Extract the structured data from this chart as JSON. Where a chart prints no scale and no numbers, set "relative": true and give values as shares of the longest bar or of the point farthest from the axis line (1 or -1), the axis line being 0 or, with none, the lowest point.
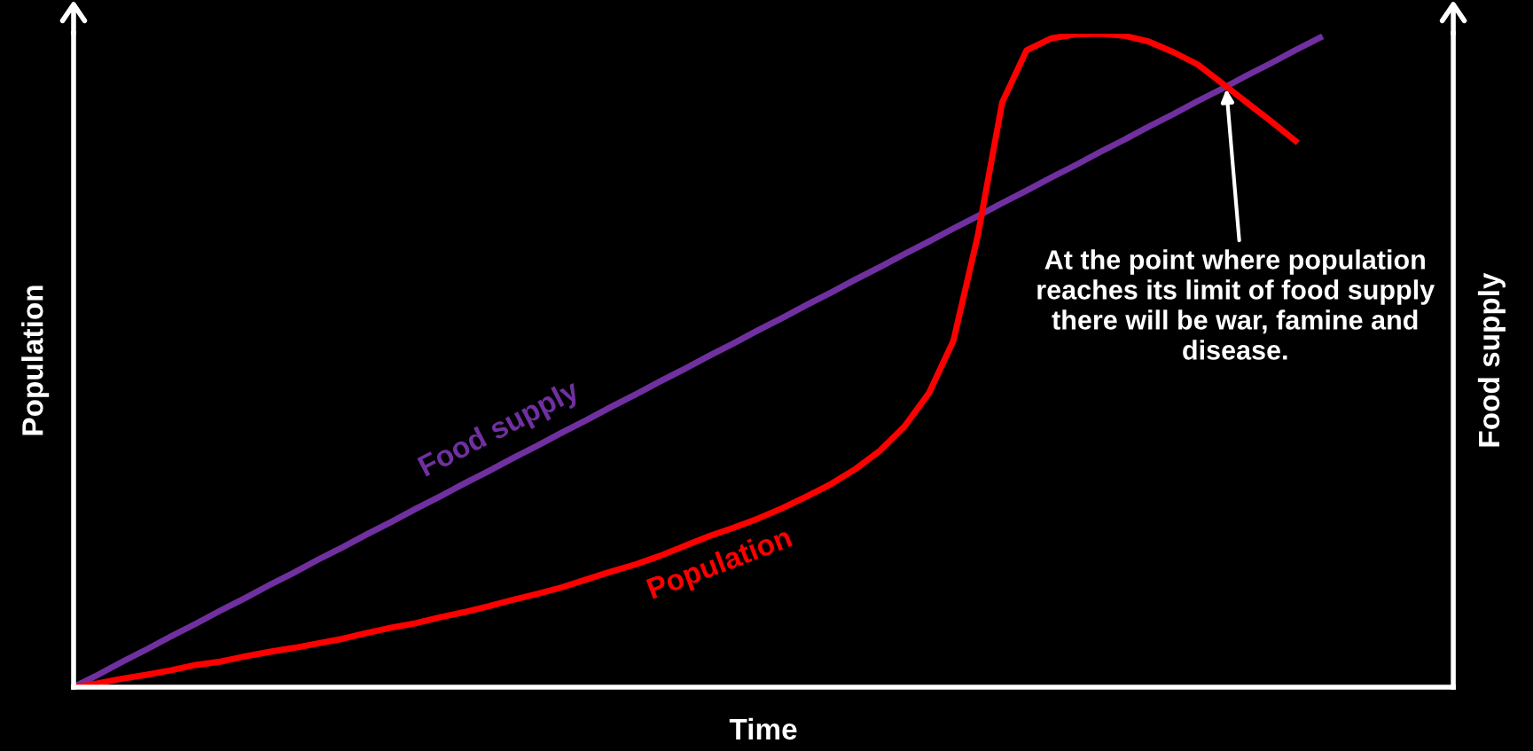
{
  "chart_data": {
    "type": "line",
    "relative": true,
    "xlabel": "Time",
    "ylabel": "Population",
    "y2label": "Food supply",
    "tick_labels": false,
    "grid": false,
    "legend": false,
    "categories": [
      null,
      null,
      null,
      null,
      null,
      null,
      null,
      null,
      null,
      null,
      null,
      null,
      null,
      null,
      null,
      null,
      null,
      null,
      null,
      null,
      null,
      null,
      null,
      null,
      null,
      null,
      null,
      null,
      null,
      null,
      null,
      null,
      null,
      null,
      null,
      null,
      null,
      null,
      null,
      null,
      null,
      null,
      null,
      null,
      null,
      null,
      null,
      null,
      null,
      null,
      null,
      null
    ],
    "series": [
      {
        "name": "Food supply",
        "color": "#7030a0",
        "values": [
          0,
          0.019,
          0.039,
          0.058,
          0.078,
          0.097,
          0.117,
          0.136,
          0.156,
          0.175,
          0.195,
          0.214,
          0.234,
          0.253,
          0.273,
          0.292,
          0.312,
          0.331,
          0.351,
          0.37,
          0.39,
          0.409,
          0.429,
          0.448,
          0.468,
          0.487,
          0.507,
          0.526,
          0.546,
          0.565,
          0.585,
          0.604,
          0.624,
          0.643,
          0.663,
          0.682,
          0.702,
          0.721,
          0.741,
          0.76,
          0.78,
          0.799,
          0.819,
          0.838,
          0.858,
          0.877,
          0.897,
          0.916,
          0.936,
          0.955,
          0.975,
          0.994
        ]
      },
      {
        "name": "Population",
        "color": "#ff0000",
        "values": [
          0,
          0.006,
          0.013,
          0.019,
          0.026,
          0.034,
          0.039,
          0.047,
          0.054,
          0.06,
          0.067,
          0.074,
          0.083,
          0.091,
          0.098,
          0.107,
          0.115,
          0.124,
          0.134,
          0.143,
          0.153,
          0.165,
          0.177,
          0.188,
          0.201,
          0.216,
          0.231,
          0.244,
          0.258,
          0.274,
          0.292,
          0.311,
          0.334,
          0.362,
          0.399,
          0.45,
          0.53,
          0.691,
          0.895,
          0.975,
          0.993,
          0.999,
          1,
          0.997,
          0.988,
          0.972,
          0.953,
          0.924,
          0.895,
          0.866,
          0.836,
          null
        ]
      }
    ],
    "annotations": [
      "At the point where population reaches its limit of food supply there will be war, famine and disease."
    ]
  }
}
